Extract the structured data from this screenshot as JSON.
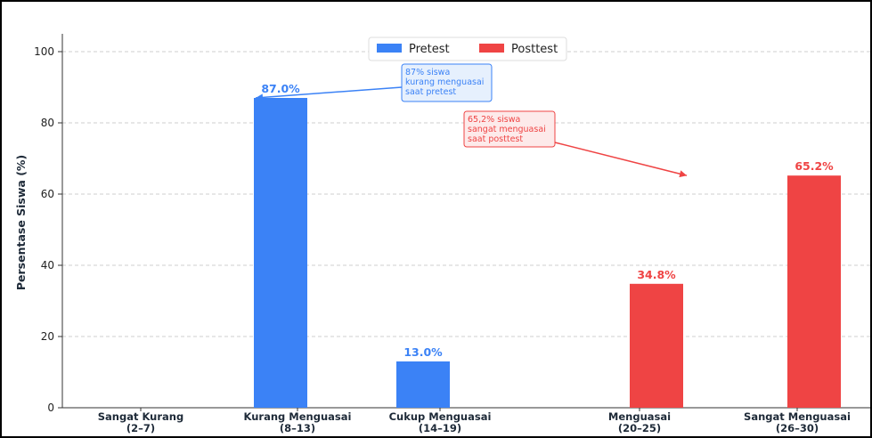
{
  "colors": {
    "pretest": "#3b82f6",
    "posttest": "#ef4444",
    "pretest_note_bg": "#e6f0fd",
    "posttest_note_bg": "#fdeaea"
  },
  "chart_data": {
    "type": "bar",
    "categories": [
      [
        "Sangat Kurang",
        "(2–7)"
      ],
      [
        "Kurang Menguasai",
        "(8–13)"
      ],
      [
        "Cukup Menguasai",
        "(14–19)"
      ],
      [
        "Menguasai",
        "(20–25)"
      ],
      [
        "Sangat Menguasai",
        "(26–30)"
      ]
    ],
    "series": [
      {
        "name": "Pretest",
        "color": "#3b82f6",
        "values": [
          0,
          87.0,
          13.0,
          0,
          0
        ]
      },
      {
        "name": "Posttest",
        "color": "#ef4444",
        "values": [
          0,
          0,
          0,
          34.8,
          65.2
        ]
      }
    ],
    "value_labels": [
      {
        "series": 0,
        "category": 1,
        "text": "87.0%"
      },
      {
        "series": 0,
        "category": 2,
        "text": "13.0%"
      },
      {
        "series": 1,
        "category": 3,
        "text": "34.8%"
      },
      {
        "series": 1,
        "category": 4,
        "text": "65.2%"
      }
    ],
    "ylabel": "Persentase Siswa (%)",
    "xlabel": "",
    "ylim": [
      0,
      105
    ],
    "yticks": [
      0,
      20,
      40,
      60,
      80,
      100
    ],
    "grid": true,
    "legend_position": "top-center",
    "annotations": [
      {
        "series": 0,
        "lines": [
          "87% siswa",
          "kurang menguasai",
          "saat pretest"
        ],
        "arrow_target": {
          "category": 1,
          "value": 87.0
        }
      },
      {
        "series": 1,
        "lines": [
          "65,2% siswa",
          "sangat menguasai",
          "saat posttest"
        ],
        "arrow_target": {
          "category": 3.3,
          "value": 65.2
        }
      }
    ]
  }
}
